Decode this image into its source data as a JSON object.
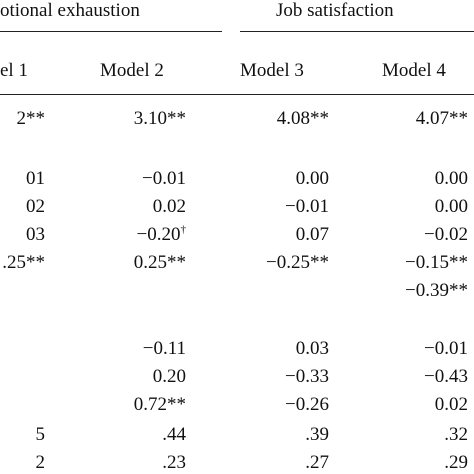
{
  "headers": {
    "group_left": "otional exhaustion",
    "group_right": "Job satisfaction",
    "models": [
      "el 1",
      "Model 2",
      "Model 3",
      "Model 4"
    ]
  },
  "rows": [
    [
      "2**",
      "3.10**",
      "4.08**",
      "4.07**"
    ],
    [
      "01",
      "−0.01",
      "0.00",
      "0.00"
    ],
    [
      "02",
      "0.02",
      "−0.01",
      "0.00"
    ],
    [
      "03",
      "−0.20†",
      "0.07",
      "−0.02"
    ],
    [
      ".25**",
      "0.25**",
      "−0.25**",
      "−0.15**"
    ],
    [
      "",
      "",
      "",
      "−0.39**"
    ],
    [
      "",
      "−0.11",
      "0.03",
      "−0.01"
    ],
    [
      "",
      "0.20",
      "−0.33",
      "−0.43"
    ],
    [
      "",
      "0.72**",
      "−0.26",
      "0.02"
    ],
    [
      "5",
      ".44",
      ".39",
      ".32"
    ],
    [
      "2",
      ".23",
      ".27",
      ".29"
    ]
  ]
}
